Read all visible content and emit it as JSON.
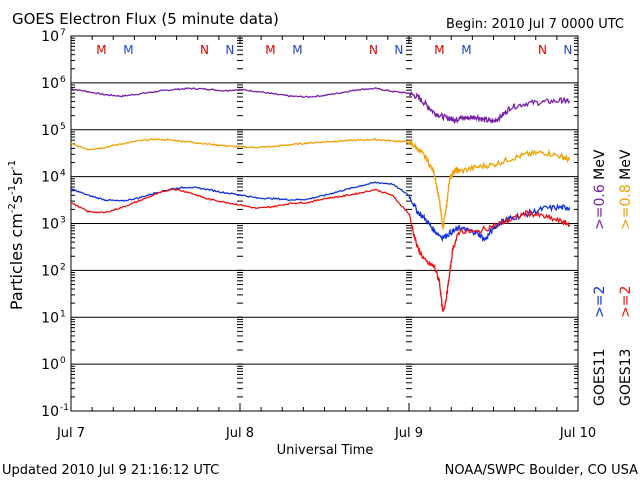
{
  "header": {
    "title": "GOES Electron Flux (5 minute data)",
    "begin": "Begin: 2010 Jul 7 0000 UTC"
  },
  "footer": {
    "updated": "Updated 2010 Jul  9 21:16:12 UTC",
    "credit": "NOAA/SWPC Boulder, CO USA"
  },
  "axes": {
    "ylabel_main": "Particles cm",
    "ylabel_sup1": "-2",
    "ylabel_mid1": "s",
    "ylabel_sup2": "-1",
    "ylabel_mid2": "sr",
    "ylabel_sup3": "-1",
    "xlabel": "Universal Time",
    "xticks": [
      "Jul 7",
      "Jul 8",
      "Jul 9",
      "Jul 10"
    ],
    "ytick_exponents": [
      "7",
      "6",
      "5",
      "4",
      "3",
      "2",
      "1",
      "0",
      "-1"
    ]
  },
  "right_legend": {
    "g11_label": "GOES11",
    "g13_label": "GOES13",
    "g11_e2": ">=2",
    "g13_e2": ">=2",
    "g11_e06": ">=0.6 MeV",
    "g13_e08": ">=0.8 MeV"
  },
  "top_markers": [
    {
      "label": "M",
      "color": "#dd0000",
      "day": 0.18
    },
    {
      "label": "M",
      "color": "#2244cc",
      "day": 0.34
    },
    {
      "label": "N",
      "color": "#dd0000",
      "day": 0.79
    },
    {
      "label": "N",
      "color": "#2244cc",
      "day": 0.94
    },
    {
      "label": "M",
      "color": "#dd0000",
      "day": 1.18
    },
    {
      "label": "M",
      "color": "#2244cc",
      "day": 1.34
    },
    {
      "label": "N",
      "color": "#dd0000",
      "day": 1.79
    },
    {
      "label": "N",
      "color": "#2244cc",
      "day": 1.94
    },
    {
      "label": "M",
      "color": "#dd0000",
      "day": 2.18
    },
    {
      "label": "M",
      "color": "#2244cc",
      "day": 2.34
    },
    {
      "label": "N",
      "color": "#dd0000",
      "day": 2.79
    },
    {
      "label": "N",
      "color": "#2244cc",
      "day": 2.94
    }
  ],
  "chart_data": {
    "type": "line",
    "title": "GOES Electron Flux (5 minute data)",
    "xlabel": "Universal Time",
    "ylabel": "Particles cm^-2 s^-1 sr^-1",
    "yscale": "log",
    "ylim": [
      0.1,
      10000000
    ],
    "xlim_days": [
      0,
      3
    ],
    "grid": true,
    "threshold_line": 1000,
    "colors": {
      "g11_06": "#7722aa",
      "g13_08": "#f0a000",
      "g11_2": "#1133dd",
      "g13_2": "#ee1111"
    },
    "series": [
      {
        "name": "GOES11 >=0.6 MeV",
        "color": "#7722aa",
        "x": [
          0,
          0.1,
          0.2,
          0.3,
          0.4,
          0.5,
          0.6,
          0.7,
          0.8,
          0.9,
          1.0,
          1.1,
          1.2,
          1.3,
          1.4,
          1.5,
          1.6,
          1.7,
          1.8,
          1.9,
          2.0,
          2.05,
          2.1,
          2.15,
          2.2,
          2.25,
          2.28,
          2.3,
          2.35,
          2.4,
          2.45,
          2.5,
          2.55,
          2.6,
          2.7,
          2.8,
          2.9,
          2.95
        ],
        "y": [
          750000,
          650000,
          560000,
          520000,
          580000,
          650000,
          720000,
          760000,
          740000,
          680000,
          720000,
          660000,
          580000,
          520000,
          500000,
          540000,
          620000,
          720000,
          760000,
          660000,
          600000,
          500000,
          350000,
          230000,
          190000,
          170000,
          165000,
          175000,
          180000,
          190000,
          160000,
          150000,
          200000,
          300000,
          370000,
          390000,
          420000,
          400000
        ]
      },
      {
        "name": "GOES13 >=0.8 MeV",
        "color": "#f0a000",
        "x": [
          0,
          0.1,
          0.2,
          0.3,
          0.4,
          0.5,
          0.6,
          0.7,
          0.8,
          0.9,
          1.0,
          1.1,
          1.2,
          1.3,
          1.4,
          1.5,
          1.6,
          1.7,
          1.8,
          1.9,
          2.0,
          2.05,
          2.1,
          2.15,
          2.18,
          2.2,
          2.22,
          2.24,
          2.26,
          2.28,
          2.3,
          2.4,
          2.5,
          2.6,
          2.7,
          2.8,
          2.9,
          2.95
        ],
        "y": [
          50000,
          38000,
          42000,
          50000,
          58000,
          63000,
          60000,
          55000,
          50000,
          46000,
          43000,
          42000,
          44000,
          48000,
          52000,
          55000,
          58000,
          60000,
          62000,
          58000,
          55000,
          40000,
          25000,
          12000,
          3000,
          800,
          2000,
          9000,
          12000,
          14000,
          13000,
          16000,
          18000,
          24000,
          30000,
          33000,
          27000,
          23000
        ]
      },
      {
        "name": "GOES11 >=2 MeV",
        "color": "#1133dd",
        "x": [
          0,
          0.1,
          0.2,
          0.3,
          0.4,
          0.5,
          0.6,
          0.7,
          0.8,
          0.9,
          1.0,
          1.1,
          1.2,
          1.3,
          1.4,
          1.5,
          1.6,
          1.7,
          1.8,
          1.9,
          2.0,
          2.05,
          2.1,
          2.15,
          2.2,
          2.25,
          2.3,
          2.35,
          2.4,
          2.45,
          2.5,
          2.55,
          2.6,
          2.7,
          2.8,
          2.9,
          2.95
        ],
        "y": [
          5500,
          4000,
          3200,
          3000,
          3500,
          4500,
          5500,
          6000,
          5400,
          4600,
          4100,
          3500,
          3400,
          3200,
          3300,
          4000,
          5000,
          6200,
          7500,
          7000,
          4000,
          1800,
          1200,
          700,
          500,
          650,
          800,
          700,
          650,
          450,
          800,
          1100,
          1300,
          1600,
          2100,
          2200,
          2200
        ]
      },
      {
        "name": "GOES13 >=2 MeV",
        "color": "#ee1111",
        "x": [
          0,
          0.1,
          0.2,
          0.3,
          0.4,
          0.5,
          0.6,
          0.7,
          0.8,
          0.9,
          1.0,
          1.1,
          1.2,
          1.3,
          1.4,
          1.5,
          1.6,
          1.7,
          1.8,
          1.9,
          2.0,
          2.05,
          2.1,
          2.15,
          2.18,
          2.2,
          2.22,
          2.24,
          2.26,
          2.3,
          2.4,
          2.5,
          2.6,
          2.7,
          2.8,
          2.9,
          2.95
        ],
        "y": [
          2800,
          1800,
          1700,
          2200,
          3000,
          4200,
          5500,
          4600,
          3400,
          2900,
          2500,
          2100,
          2300,
          2700,
          2800,
          3400,
          3800,
          4400,
          5300,
          4000,
          1600,
          300,
          150,
          120,
          60,
          12,
          25,
          80,
          300,
          700,
          650,
          900,
          1200,
          1700,
          1400,
          1100,
          950
        ]
      }
    ]
  }
}
